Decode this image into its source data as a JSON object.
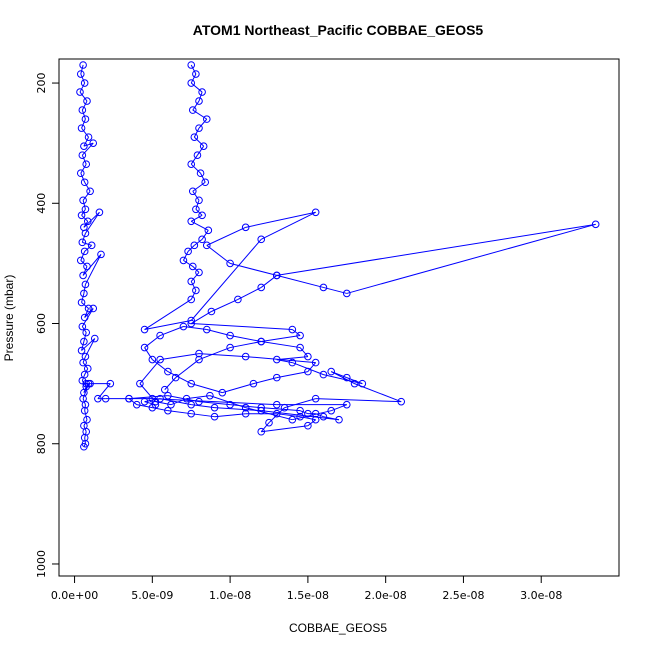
{
  "chart_data": {
    "type": "scatter",
    "title": "ATOM1 Northeast_Pacific COBBAE_GEOS5",
    "xlabel": "COBBAE_GEOS5",
    "ylabel": "Pressure (mbar)",
    "xlim": [
      -1e-09,
      3.5e-08
    ],
    "ylim": [
      1020,
      160
    ],
    "y_reversed": true,
    "x_ticks": [
      0,
      5e-09,
      1e-08,
      1.5e-08,
      2e-08,
      2.5e-08,
      3e-08
    ],
    "x_tick_labels": [
      "0.0e+00",
      "5.0e-09",
      "1.0e-08",
      "1.5e-08",
      "2.0e-08",
      "2.5e-08",
      "3.0e-08"
    ],
    "y_ticks": [
      200,
      400,
      600,
      800,
      1000
    ],
    "y_tick_labels": [
      "200",
      "400",
      "600",
      "800",
      "1000"
    ],
    "grid": false,
    "marker": "open-circle",
    "color": "#0000ff",
    "series": [
      {
        "x": [
          5.5e-10,
          4e-10,
          6.5e-10,
          3.5e-10,
          8e-10,
          5e-10,
          7e-10,
          4.5e-10,
          9e-10,
          6e-10,
          1.2e-09,
          5e-10,
          7.5e-10,
          4e-10,
          6.5e-10,
          1e-09,
          5.5e-10,
          7e-10,
          4.5e-10,
          8.5e-10,
          6e-10,
          1.6e-09,
          7e-10,
          5e-10,
          1.1e-09,
          6.5e-10,
          4e-10,
          8e-10,
          5.5e-10,
          1.7e-09,
          7e-10,
          6e-10,
          4.5e-10,
          9e-10,
          6.5e-10,
          1.2e-09,
          5e-10,
          7.5e-10,
          6e-10,
          4.5e-10,
          1.3e-09,
          7e-10,
          5.5e-10,
          8.5e-10,
          6.5e-10,
          5e-10,
          7.5e-10,
          6e-10,
          9e-10,
          5.5e-10,
          7e-10,
          6.5e-10,
          8e-10,
          6e-10,
          7.5e-10,
          6.5e-10,
          7e-10,
          6e-10
        ],
        "y": [
          170,
          185,
          200,
          215,
          230,
          245,
          260,
          275,
          290,
          305,
          300,
          320,
          335,
          350,
          365,
          380,
          395,
          410,
          420,
          430,
          440,
          415,
          450,
          465,
          470,
          480,
          495,
          505,
          520,
          485,
          535,
          550,
          565,
          575,
          590,
          575,
          605,
          615,
          630,
          645,
          625,
          655,
          665,
          675,
          685,
          695,
          705,
          715,
          700,
          725,
          735,
          745,
          760,
          770,
          780,
          790,
          800,
          805
        ]
      },
      {
        "x": [
          7.5e-10,
          1e-09,
          2.3e-09,
          1.5e-09,
          2e-09,
          3.5e-09,
          4e-09,
          5e-09,
          6e-09,
          7.5e-09,
          9e-09,
          1.1e-08,
          1.3e-08,
          1.45e-08,
          1.55e-08,
          1.5e-08,
          1.2e-08,
          1.25e-08,
          1.35e-08,
          1.55e-08,
          2.1e-08,
          1.8e-08,
          1.65e-08,
          1.75e-08,
          1.85e-08,
          1.6e-08,
          1.4e-08,
          1.3e-08,
          1.5e-08,
          1.45e-08,
          1.2e-08,
          1e-08,
          8.5e-09,
          7e-09,
          5.5e-09,
          4.5e-09,
          5e-09,
          6e-09,
          7.5e-09,
          9.5e-09,
          1.15e-08,
          1.3e-08,
          1.5e-08,
          1.55e-08,
          1.1e-08,
          8e-09,
          5.5e-09,
          4.2e-09,
          5.2e-09,
          6.2e-09,
          7.2e-09,
          8.7e-09,
          1.1e-08,
          1.4e-08,
          1.65e-08,
          1.75e-08,
          1.3e-08,
          5e-09,
          3.5e-09,
          6e-09,
          8e-09,
          1e-08,
          1.2e-08,
          1.45e-08,
          1.5e-08,
          1.55e-08,
          1.6e-08,
          1.7e-08,
          1.2e-08,
          9e-09,
          7.5e-09,
          5.5e-09,
          4.5e-09,
          5.2e-09
        ],
        "y": [
          700,
          700,
          700,
          725,
          725,
          725,
          735,
          740,
          745,
          750,
          755,
          750,
          750,
          755,
          760,
          770,
          780,
          765,
          740,
          725,
          730,
          700,
          680,
          690,
          700,
          685,
          665,
          660,
          655,
          640,
          630,
          620,
          610,
          605,
          620,
          640,
          660,
          680,
          700,
          715,
          700,
          690,
          680,
          665,
          655,
          650,
          660,
          700,
          730,
          735,
          725,
          720,
          740,
          760,
          745,
          735,
          735,
          725,
          725,
          720,
          730,
          735,
          740,
          745,
          750,
          750,
          755,
          760,
          745,
          740,
          735,
          725,
          730,
          735
        ]
      },
      {
        "x": [
          7.5e-09,
          7.8e-09,
          7.5e-09,
          8.2e-09,
          8e-09,
          7.6e-09,
          8.5e-09,
          8e-09,
          7.7e-09,
          8.3e-09,
          7.9e-09,
          7.5e-09,
          8.1e-09,
          8.4e-09,
          7.6e-09,
          8e-09,
          7.8e-09,
          8.2e-09,
          7.5e-09,
          8.6e-09,
          8.2e-09,
          7.7e-09,
          7.3e-09,
          7e-09,
          7.6e-09,
          8e-09,
          7.5e-09,
          7.8e-09,
          7.5e-09,
          4.5e-09,
          7.5e-09,
          1.2e-08,
          1.55e-08,
          1.1e-08,
          8.5e-09,
          1e-08,
          1.3e-08,
          1.6e-08,
          1.75e-08,
          3.35e-08,
          1.3e-08,
          1.2e-08,
          1.05e-08,
          8.8e-09,
          7.5e-09,
          1.4e-08,
          1.45e-08,
          1.2e-08,
          1e-08,
          8e-09,
          6.5e-09,
          5.8e-09
        ],
        "y": [
          170,
          185,
          200,
          215,
          230,
          245,
          260,
          275,
          290,
          305,
          320,
          335,
          350,
          365,
          380,
          395,
          410,
          420,
          430,
          445,
          460,
          470,
          480,
          495,
          505,
          515,
          530,
          545,
          560,
          610,
          595,
          460,
          415,
          440,
          470,
          500,
          520,
          540,
          550,
          435,
          520,
          540,
          560,
          580,
          600,
          610,
          620,
          630,
          640,
          660,
          690,
          710
        ]
      }
    ]
  }
}
